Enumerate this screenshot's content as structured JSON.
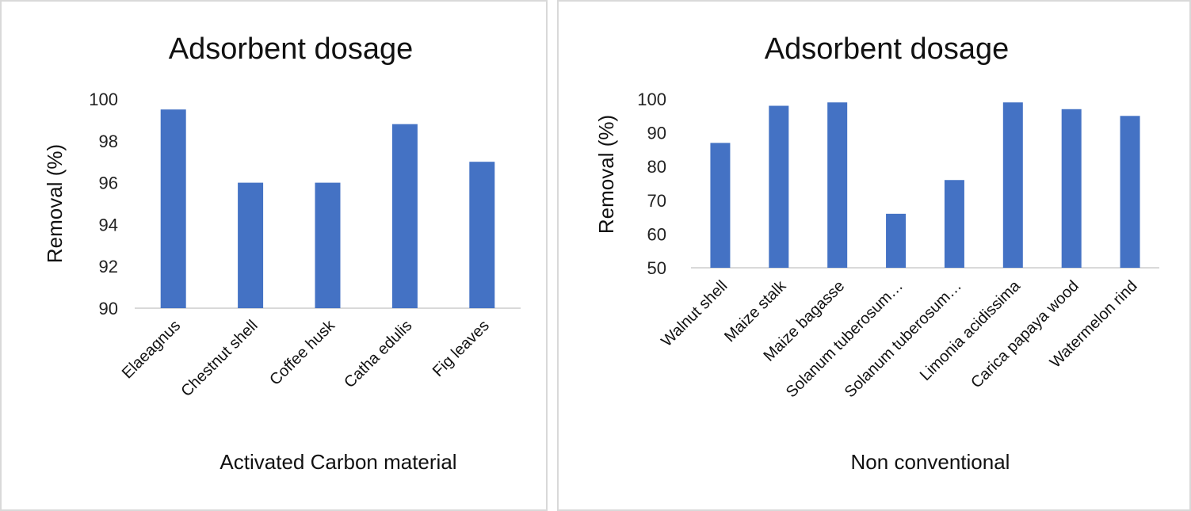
{
  "chart_data": [
    {
      "type": "bar",
      "title": "Adsorbent dosage",
      "xlabel": "Activated Carbon material",
      "ylabel": "Removal (%)",
      "ylim": [
        90,
        100
      ],
      "yticks": [
        "90",
        "92",
        "94",
        "96",
        "98",
        "100"
      ],
      "categories": [
        "Elaeagnus",
        "Chestnut shell",
        "Coffee husk",
        "Catha edulis",
        "Fig leaves"
      ],
      "values": [
        99.5,
        96.0,
        96.0,
        98.8,
        97.0
      ],
      "bar_color": "#4472c4",
      "grid": false
    },
    {
      "type": "bar",
      "title": "Adsorbent dosage",
      "xlabel": "Non conventional",
      "ylabel": "Removal (%)",
      "ylim": [
        50,
        100
      ],
      "yticks": [
        "50",
        "60",
        "70",
        "80",
        "90",
        "100"
      ],
      "categories": [
        "Walnut shell",
        "Maize stalk",
        "Maize bagasse",
        "Solanum tuberosum…",
        "Solanum tuberosum…",
        "Limonia acidissima",
        "Carica papaya wood",
        "Watermelon rind"
      ],
      "values": [
        87,
        98,
        99,
        66,
        76,
        99,
        97,
        95
      ],
      "bar_color": "#4472c4",
      "grid": false
    }
  ]
}
